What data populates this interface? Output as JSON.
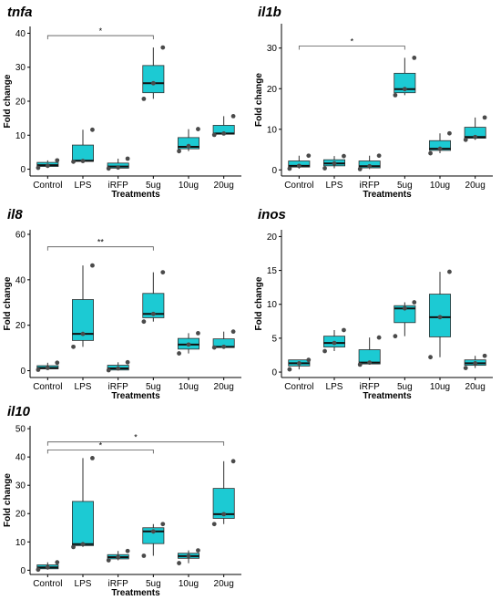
{
  "chart_data": [
    {
      "type": "box",
      "title": "tnfa",
      "xlabel": "Treatments",
      "ylabel": "Fold change",
      "ylim": [
        -2,
        42
      ],
      "yticks": [
        0,
        10,
        20,
        30,
        40
      ],
      "categories": [
        "Control",
        "LPS",
        "iRFP",
        "5ug",
        "10ug",
        "20ug"
      ],
      "boxes": [
        {
          "q1": 0.8,
          "median": 1.2,
          "q3": 2.0,
          "lo": 0.4,
          "hi": 2.6,
          "points": [
            0.4,
            1.0,
            2.6
          ]
        },
        {
          "q1": 2.3,
          "median": 2.5,
          "q3": 7.1,
          "lo": 2.2,
          "hi": 11.6,
          "points": [
            2.2,
            2.4,
            11.6
          ]
        },
        {
          "q1": 0.3,
          "median": 0.8,
          "q3": 1.8,
          "lo": 0.2,
          "hi": 3.1,
          "points": [
            0.2,
            0.5,
            3.1
          ]
        },
        {
          "q1": 22.5,
          "median": 25.3,
          "q3": 30.5,
          "lo": 20.7,
          "hi": 35.8,
          "points": [
            20.7,
            25.3,
            35.8
          ]
        },
        {
          "q1": 6.0,
          "median": 6.6,
          "q3": 9.3,
          "lo": 5.3,
          "hi": 11.8,
          "points": [
            5.3,
            6.8,
            11.8
          ]
        },
        {
          "q1": 10.3,
          "median": 10.5,
          "q3": 12.9,
          "lo": 10.1,
          "hi": 15.6,
          "points": [
            10.1,
            10.5,
            15.6
          ]
        }
      ],
      "significance": [
        {
          "from": "Control",
          "to": "5ug",
          "label": "*",
          "y": 39.3
        }
      ]
    },
    {
      "type": "box",
      "title": "il1b",
      "xlabel": "Treatments",
      "ylabel": "Fold change",
      "ylim": [
        -1.5,
        36
      ],
      "yticks": [
        0,
        10,
        20,
        30
      ],
      "categories": [
        "Control",
        "LPS",
        "iRFP",
        "5ug",
        "10ug",
        "20ug"
      ],
      "boxes": [
        {
          "q1": 0.7,
          "median": 1.0,
          "q3": 2.2,
          "lo": 0.3,
          "hi": 3.5,
          "points": [
            0.3,
            1.0,
            3.5
          ]
        },
        {
          "q1": 1.0,
          "median": 1.6,
          "q3": 2.5,
          "lo": 0.4,
          "hi": 3.4,
          "points": [
            0.4,
            1.6,
            3.4
          ]
        },
        {
          "q1": 0.5,
          "median": 0.9,
          "q3": 2.2,
          "lo": 0.2,
          "hi": 3.5,
          "points": [
            0.2,
            0.9,
            3.5
          ]
        },
        {
          "q1": 19.0,
          "median": 19.9,
          "q3": 23.8,
          "lo": 18.4,
          "hi": 27.6,
          "points": [
            18.4,
            19.9,
            27.6
          ]
        },
        {
          "q1": 4.8,
          "median": 5.2,
          "q3": 7.2,
          "lo": 4.1,
          "hi": 9.0,
          "points": [
            4.1,
            5.2,
            9.0
          ]
        },
        {
          "q1": 7.8,
          "median": 8.1,
          "q3": 10.5,
          "lo": 7.4,
          "hi": 12.9,
          "points": [
            7.4,
            8.1,
            12.9
          ]
        }
      ],
      "significance": [
        {
          "from": "Control",
          "to": "5ug",
          "label": "*",
          "y": 30.5
        }
      ]
    },
    {
      "type": "box",
      "title": "il8",
      "xlabel": "Treatments",
      "ylabel": "Fold change",
      "ylim": [
        -3,
        62
      ],
      "yticks": [
        0,
        20,
        40,
        60
      ],
      "categories": [
        "Control",
        "LPS",
        "iRFP",
        "5ug",
        "10ug",
        "20ug"
      ],
      "boxes": [
        {
          "q1": 0.8,
          "median": 1.2,
          "q3": 2.2,
          "lo": 0.4,
          "hi": 3.5,
          "points": [
            0.4,
            1.2,
            3.5
          ]
        },
        {
          "q1": 13.3,
          "median": 16.2,
          "q3": 31.3,
          "lo": 10.5,
          "hi": 46.3,
          "points": [
            10.5,
            16.2,
            46.3
          ]
        },
        {
          "q1": 0.3,
          "median": 1.0,
          "q3": 2.4,
          "lo": 0.2,
          "hi": 3.7,
          "points": [
            0.2,
            1.0,
            3.7
          ]
        },
        {
          "q1": 23.3,
          "median": 25.0,
          "q3": 34.0,
          "lo": 21.6,
          "hi": 43.3,
          "points": [
            21.6,
            25.0,
            43.3
          ]
        },
        {
          "q1": 9.5,
          "median": 11.5,
          "q3": 14.2,
          "lo": 7.6,
          "hi": 16.5,
          "points": [
            7.6,
            11.5,
            16.5
          ]
        },
        {
          "q1": 10.2,
          "median": 10.5,
          "q3": 14.0,
          "lo": 10.2,
          "hi": 17.2,
          "points": [
            10.2,
            10.5,
            17.2
          ]
        }
      ],
      "significance": [
        {
          "from": "Control",
          "to": "5ug",
          "label": "**",
          "y": 54.5
        }
      ]
    },
    {
      "type": "box",
      "title": "inos",
      "xlabel": "Treatments",
      "ylabel": "Fold change",
      "ylim": [
        -0.8,
        21
      ],
      "yticks": [
        0,
        5,
        10,
        15,
        20
      ],
      "categories": [
        "Control",
        "LPS",
        "iRFP",
        "5ug",
        "10ug",
        "20ug"
      ],
      "boxes": [
        {
          "q1": 0.9,
          "median": 1.3,
          "q3": 1.8,
          "lo": 0.4,
          "hi": 1.8,
          "points": [
            0.4,
            1.3,
            1.8
          ]
        },
        {
          "q1": 3.7,
          "median": 4.3,
          "q3": 5.3,
          "lo": 3.1,
          "hi": 6.2,
          "points": [
            3.1,
            4.3,
            6.2
          ]
        },
        {
          "q1": 1.2,
          "median": 1.4,
          "q3": 3.3,
          "lo": 1.1,
          "hi": 5.1,
          "points": [
            1.1,
            1.4,
            5.1
          ]
        },
        {
          "q1": 7.3,
          "median": 9.4,
          "q3": 9.8,
          "lo": 5.3,
          "hi": 10.3,
          "points": [
            5.3,
            9.4,
            10.3
          ]
        },
        {
          "q1": 5.2,
          "median": 8.1,
          "q3": 11.5,
          "lo": 2.2,
          "hi": 14.8,
          "points": [
            2.2,
            8.1,
            14.8
          ]
        },
        {
          "q1": 1.0,
          "median": 1.3,
          "q3": 1.8,
          "lo": 0.6,
          "hi": 2.4,
          "points": [
            0.6,
            1.3,
            2.4
          ]
        }
      ],
      "significance": []
    },
    {
      "type": "box",
      "title": "il10",
      "xlabel": "Treatments",
      "ylabel": "Fold change",
      "ylim": [
        -1.5,
        51
      ],
      "yticks": [
        0,
        10,
        20,
        30,
        40,
        50
      ],
      "categories": [
        "Control",
        "LPS",
        "iRFP",
        "5ug",
        "10ug",
        "20ug"
      ],
      "boxes": [
        {
          "q1": 0.5,
          "median": 1.0,
          "q3": 1.9,
          "lo": 0.2,
          "hi": 2.8,
          "points": [
            0.2,
            1.0,
            2.8
          ]
        },
        {
          "q1": 8.7,
          "median": 9.2,
          "q3": 24.3,
          "lo": 8.2,
          "hi": 39.6,
          "points": [
            8.2,
            9.2,
            39.6
          ]
        },
        {
          "q1": 4.0,
          "median": 4.6,
          "q3": 5.5,
          "lo": 3.5,
          "hi": 6.8,
          "points": [
            3.5,
            4.6,
            6.8
          ]
        },
        {
          "q1": 9.4,
          "median": 13.7,
          "q3": 15.0,
          "lo": 5.1,
          "hi": 16.3,
          "points": [
            5.1,
            13.7,
            16.3
          ]
        },
        {
          "q1": 4.2,
          "median": 5.0,
          "q3": 6.0,
          "lo": 2.5,
          "hi": 7.0,
          "points": [
            2.5,
            5.0,
            7.0
          ]
        },
        {
          "q1": 18.3,
          "median": 19.8,
          "q3": 28.9,
          "lo": 16.3,
          "hi": 38.5,
          "points": [
            16.3,
            19.8,
            38.5
          ]
        }
      ],
      "significance": [
        {
          "from": "Control",
          "to": "20ug",
          "label": "*",
          "y": 45.3
        },
        {
          "from": "Control",
          "to": "5ug",
          "label": "*",
          "y": 42.5
        }
      ]
    }
  ],
  "colors": {
    "box_fill": "#1ccad3",
    "box_stroke": "#2f2f2f",
    "point": "#4a4a4a",
    "axis": "#000000"
  }
}
